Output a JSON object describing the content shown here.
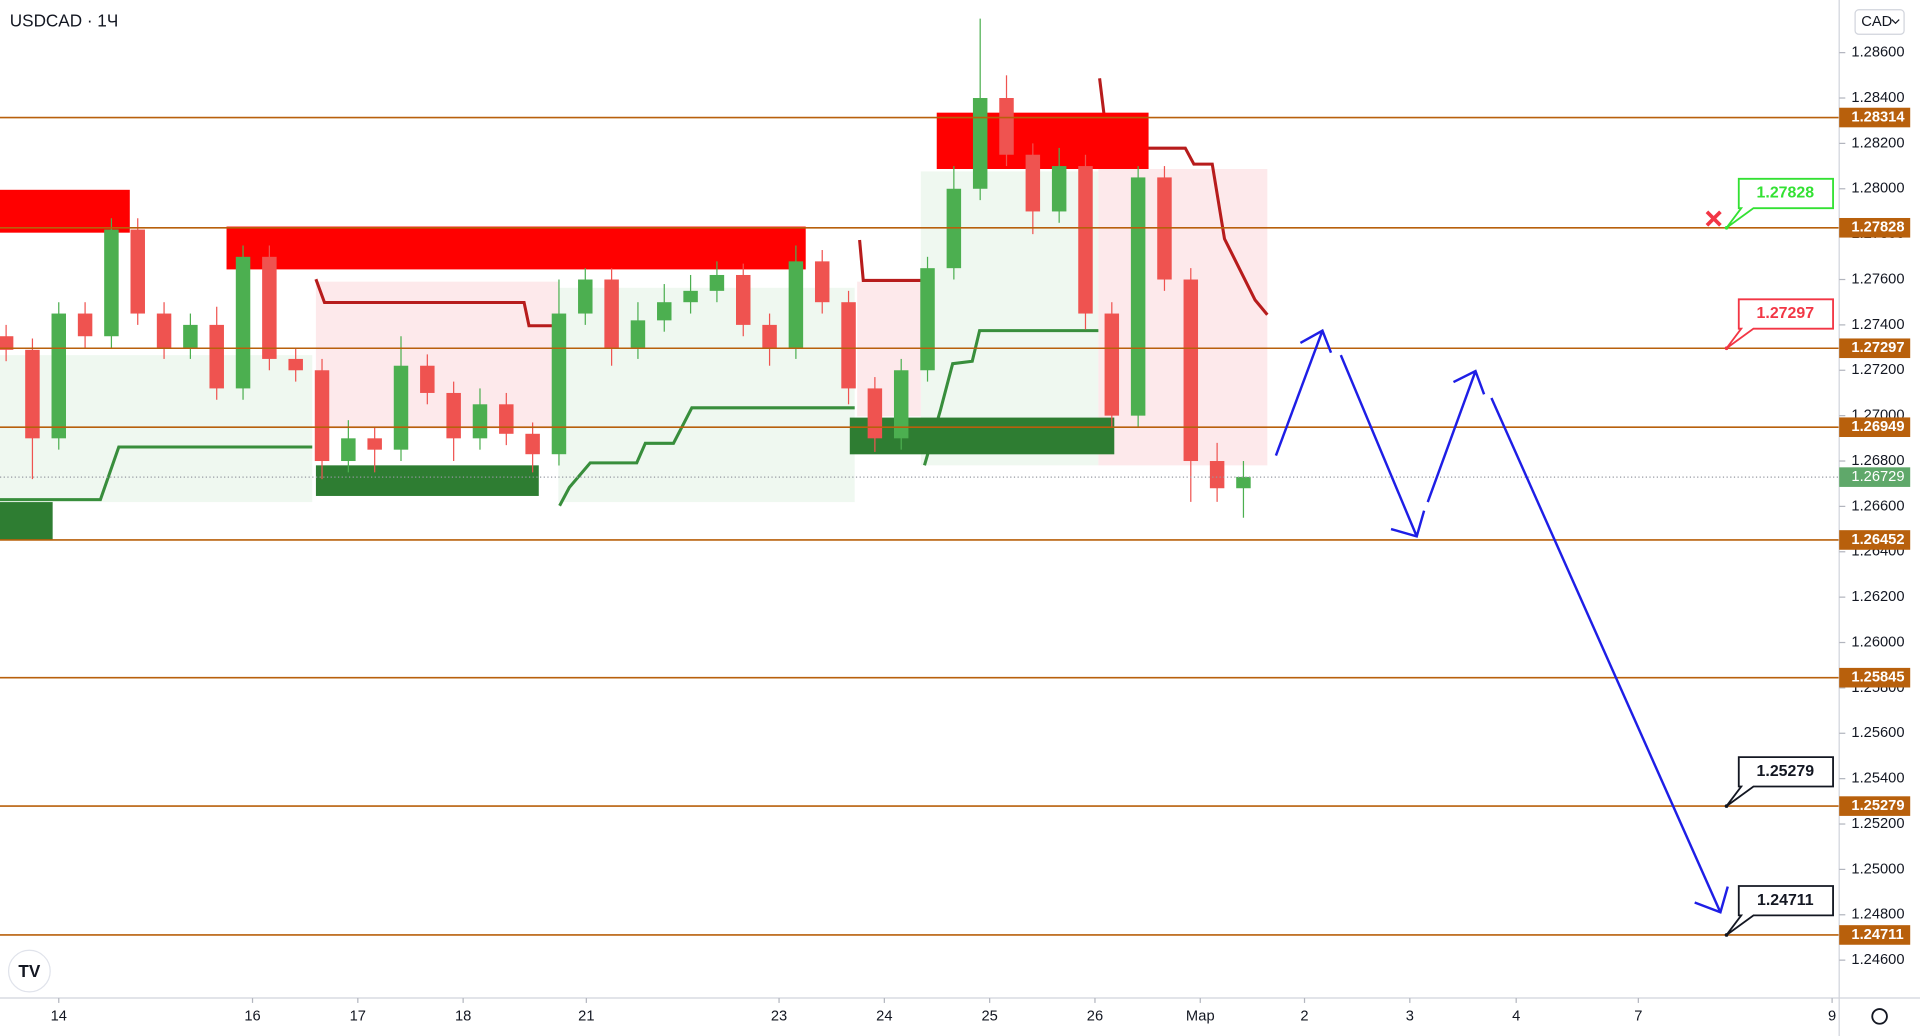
{
  "chart_data": {
    "type": "candlestick",
    "title": "USDCAD · 1Ч",
    "currency": "CAD",
    "xlim": [
      -0.558,
      16.884
    ],
    "ylim": [
      1.28832,
      1.24433
    ],
    "xticks": [
      {
        "value": 0,
        "label": "14"
      },
      {
        "value": 1.84,
        "label": "16"
      },
      {
        "value": 2.84,
        "label": "17"
      },
      {
        "value": 3.84,
        "label": "18"
      },
      {
        "value": 5.01,
        "label": "21"
      },
      {
        "value": 6.84,
        "label": "23"
      },
      {
        "value": 7.84,
        "label": "24"
      },
      {
        "value": 8.84,
        "label": "25"
      },
      {
        "value": 9.84,
        "label": "26"
      },
      {
        "value": 10.84,
        "label": "Мар"
      },
      {
        "value": 11.83,
        "label": "2"
      },
      {
        "value": 12.83,
        "label": "3"
      },
      {
        "value": 13.84,
        "label": "4"
      },
      {
        "value": 15.0,
        "label": "7"
      },
      {
        "value": 16.84,
        "label": "9"
      }
    ],
    "yticks": [
      {
        "value": 1.286,
        "label": "1.28600"
      },
      {
        "value": 1.284,
        "label": "1.28400"
      },
      {
        "value": 1.282,
        "label": "1.28200"
      },
      {
        "value": 1.28,
        "label": "1.28000"
      },
      {
        "value": 1.278,
        "label": "1.27800"
      },
      {
        "value": 1.276,
        "label": "1.27600"
      },
      {
        "value": 1.274,
        "label": "1.27400"
      },
      {
        "value": 1.272,
        "label": "1.27200"
      },
      {
        "value": 1.27,
        "label": "1.27000"
      },
      {
        "value": 1.268,
        "label": "1.26800"
      },
      {
        "value": 1.266,
        "label": "1.26600"
      },
      {
        "value": 1.264,
        "label": "1.26400"
      },
      {
        "value": 1.262,
        "label": "1.26200"
      },
      {
        "value": 1.26,
        "label": "1.26000"
      },
      {
        "value": 1.258,
        "label": "1.25800"
      },
      {
        "value": 1.256,
        "label": "1.25600"
      },
      {
        "value": 1.254,
        "label": "1.25400"
      },
      {
        "value": 1.252,
        "label": "1.25200"
      },
      {
        "value": 1.25,
        "label": "1.25000"
      },
      {
        "value": 1.248,
        "label": "1.24800"
      },
      {
        "value": 1.246,
        "label": "1.24600"
      }
    ],
    "x": [
      -0.5,
      -0.25,
      0,
      0.25,
      0.5,
      0.75,
      1,
      1.25,
      1.5,
      1.75,
      2,
      2.25,
      2.5,
      2.75,
      3,
      3.25,
      3.5,
      3.75,
      4,
      4.25,
      4.5,
      4.75,
      5,
      5.25,
      5.5,
      5.75,
      6,
      6.25,
      6.5,
      6.75,
      7,
      7.25,
      7.5,
      7.75,
      8,
      8.25,
      8.5,
      8.75,
      9,
      9.25,
      9.5,
      9.75,
      10,
      10.25,
      10.5,
      10.75,
      11,
      11.25
    ],
    "open": [
      1.2735,
      1.2729,
      1.269,
      1.2745,
      1.2735,
      1.2782,
      1.2745,
      1.273,
      1.274,
      1.2712,
      1.277,
      1.2725,
      1.272,
      1.268,
      1.269,
      1.2685,
      1.2722,
      1.271,
      1.269,
      1.2705,
      1.2692,
      1.2683,
      1.2745,
      1.276,
      1.273,
      1.2742,
      1.275,
      1.2755,
      1.2762,
      1.274,
      1.273,
      1.2768,
      1.275,
      1.2712,
      1.269,
      1.272,
      1.2765,
      1.28,
      1.284,
      1.2815,
      1.279,
      1.281,
      1.2745,
      1.27,
      1.2805,
      1.276,
      1.268,
      1.2668
    ],
    "high": [
      1.274,
      1.2734,
      1.275,
      1.275,
      1.2787,
      1.2787,
      1.275,
      1.2745,
      1.2748,
      1.2775,
      1.2775,
      1.273,
      1.2725,
      1.2698,
      1.2695,
      1.2735,
      1.2727,
      1.2715,
      1.2712,
      1.271,
      1.2697,
      1.276,
      1.2765,
      1.2765,
      1.275,
      1.2758,
      1.2762,
      1.2768,
      1.2767,
      1.2745,
      1.2775,
      1.2773,
      1.2755,
      1.2717,
      1.2725,
      1.277,
      1.281,
      1.2875,
      1.285,
      1.282,
      1.2818,
      1.2815,
      1.275,
      1.281,
      1.281,
      1.2765,
      1.2688,
      1.268
    ],
    "low": [
      1.2724,
      1.2672,
      1.2685,
      1.273,
      1.273,
      1.274,
      1.2725,
      1.2725,
      1.2707,
      1.2707,
      1.272,
      1.2715,
      1.2672,
      1.2675,
      1.2675,
      1.268,
      1.2705,
      1.268,
      1.2685,
      1.2687,
      1.2675,
      1.2678,
      1.274,
      1.2722,
      1.2725,
      1.2737,
      1.2745,
      1.275,
      1.2735,
      1.2722,
      1.2725,
      1.2745,
      1.2705,
      1.2684,
      1.2685,
      1.2715,
      1.276,
      1.2795,
      1.281,
      1.278,
      1.2785,
      1.2738,
      1.2695,
      1.2695,
      1.2755,
      1.2662,
      1.2662,
      1.2655
    ],
    "close": [
      1.2729,
      1.269,
      1.2745,
      1.2735,
      1.2782,
      1.2745,
      1.273,
      1.274,
      1.2712,
      1.277,
      1.2725,
      1.272,
      1.268,
      1.269,
      1.2685,
      1.2722,
      1.271,
      1.269,
      1.2705,
      1.2692,
      1.2683,
      1.2745,
      1.276,
      1.273,
      1.2742,
      1.275,
      1.2755,
      1.2762,
      1.274,
      1.273,
      1.2768,
      1.275,
      1.2712,
      1.269,
      1.272,
      1.2765,
      1.28,
      1.284,
      1.2815,
      1.279,
      1.281,
      1.2745,
      1.27,
      1.2805,
      1.276,
      1.268,
      1.2668,
      1.2673
    ],
    "up_color": "#4caf50",
    "down_color": "#ef5350",
    "levels": [
      1.28314,
      1.27828,
      1.27297,
      1.26949,
      1.26452,
      1.25845,
      1.25279,
      1.24711
    ],
    "level_color": "#b8600c",
    "last_price": 1.26729,
    "last_price_color": "#5fa86a",
    "callouts": [
      {
        "value": 1.27828,
        "color": "#33e133"
      },
      {
        "value": 1.27297,
        "color": "#f23645"
      },
      {
        "value": 1.25279,
        "color": "#131722"
      },
      {
        "value": 1.24711,
        "color": "#131722"
      }
    ]
  }
}
